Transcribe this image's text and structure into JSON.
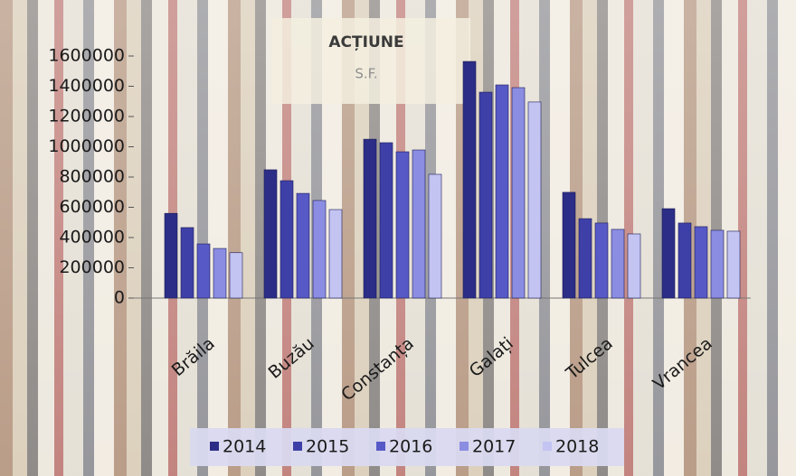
{
  "chart_data": {
    "type": "bar",
    "title": "ACȚIUNE",
    "subtitle": "S.F.",
    "categories": [
      "Brăila",
      "Buzău",
      "Constanța",
      "Galați",
      "Tulcea",
      "Vrancea"
    ],
    "series": [
      {
        "name": "2014",
        "color": "#2c2d86",
        "values": [
          560000,
          848000,
          1050000,
          1564000,
          699000,
          591000
        ]
      },
      {
        "name": "2015",
        "color": "#3e40a8",
        "values": [
          466000,
          776000,
          1027000,
          1361000,
          525000,
          496000
        ]
      },
      {
        "name": "2016",
        "color": "#5759c6",
        "values": [
          358000,
          692000,
          967000,
          1409000,
          496000,
          472000
        ]
      },
      {
        "name": "2017",
        "color": "#8b8de2",
        "values": [
          328000,
          645000,
          979000,
          1391000,
          454000,
          448000
        ]
      },
      {
        "name": "2018",
        "color": "#c3c4f2",
        "values": [
          300000,
          585000,
          818000,
          1296000,
          424000,
          442000
        ]
      }
    ],
    "ylim": [
      0,
      1600000
    ],
    "yticks": [
      0,
      200000,
      400000,
      600000,
      800000,
      1000000,
      1200000,
      1400000,
      1600000
    ],
    "legend": "bottom"
  }
}
